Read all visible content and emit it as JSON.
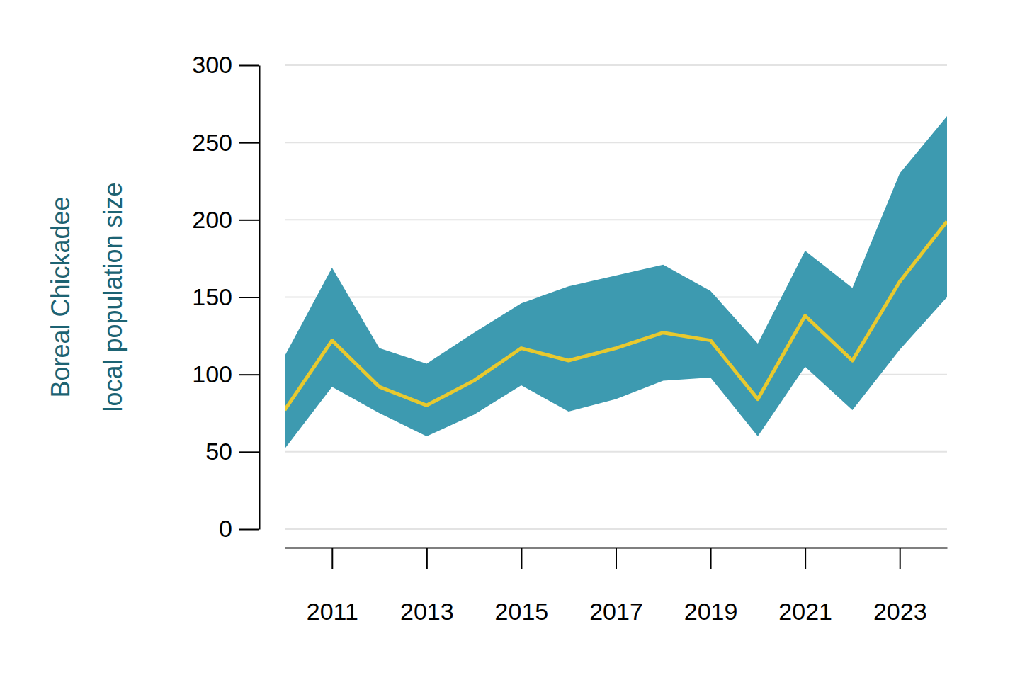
{
  "chart_data": {
    "type": "line",
    "y_label": [
      "Boreal Chickadee",
      "local population size"
    ],
    "x": [
      2010,
      2011,
      2012,
      2013,
      2014,
      2015,
      2016,
      2017,
      2018,
      2019,
      2020,
      2021,
      2022,
      2023,
      2024
    ],
    "series": [
      {
        "type": "area",
        "color": "#3d9ab0",
        "upper": [
          112,
          169,
          117,
          107,
          127,
          146,
          157,
          164,
          171,
          154,
          120,
          180,
          156,
          230,
          267
        ],
        "lower": [
          52,
          92,
          75,
          60,
          74,
          93,
          76,
          84,
          96,
          98,
          60,
          105,
          77,
          116,
          150
        ]
      },
      {
        "type": "line",
        "color": "#e8c92e",
        "values": [
          77,
          122,
          92,
          80,
          96,
          117,
          109,
          117,
          127,
          122,
          84,
          138,
          109,
          160,
          199
        ]
      }
    ],
    "xlim": [
      2010,
      2024
    ],
    "xticks": [
      2011,
      2013,
      2015,
      2017,
      2019,
      2021,
      2023
    ],
    "ylim": [
      0,
      300
    ],
    "yticks": [
      0,
      50,
      100,
      150,
      200,
      250,
      300
    ],
    "grid": true
  }
}
